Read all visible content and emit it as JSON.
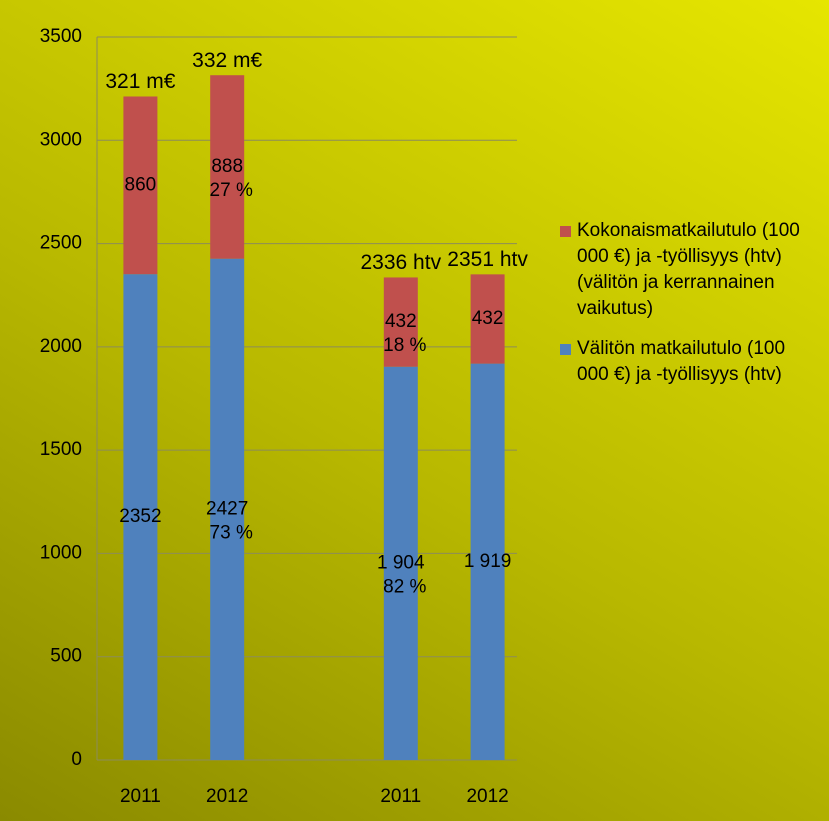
{
  "chart_data": {
    "type": "bar",
    "stacked": true,
    "categories": [
      "2011",
      "2012",
      null,
      "2011",
      "2012"
    ],
    "series": [
      {
        "name": "Välitön matkailutulo (100 000 €) ja -työllisyys (htv)",
        "color": "#4f81bd",
        "values": [
          2352,
          2427,
          null,
          1904,
          1919
        ],
        "value_labels": [
          "2352",
          "2427",
          null,
          "1 904",
          "1 919"
        ],
        "percent_labels": [
          null,
          "73 %",
          null,
          "82 %",
          null
        ]
      },
      {
        "name": "Kokonaismatkailutulo (100 000 €) ja -työllisyys (htv) (välitön ja kerrannainen vaikutus)",
        "color": "#c0504d",
        "values": [
          860,
          888,
          null,
          432,
          432
        ],
        "percent_labels": [
          null,
          "27 %",
          null,
          "18 %",
          null
        ]
      }
    ],
    "total_labels": [
      "321 m€",
      "332 m€",
      null,
      "2336 htv",
      "2351 htv"
    ],
    "ylim": [
      0,
      3500
    ],
    "yticks": [
      0,
      500,
      1000,
      1500,
      2000,
      2500,
      3000,
      3500
    ],
    "grid": true,
    "legend": "right"
  }
}
